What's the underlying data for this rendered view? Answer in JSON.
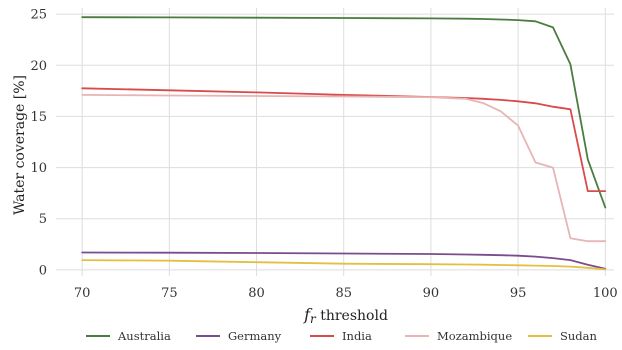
{
  "chart_data": {
    "type": "line",
    "title": "",
    "xlabel_symbol": "f",
    "xlabel_subscript": "r",
    "xlabel_text": " threshold",
    "ylabel": "Water coverage [%]",
    "xlim": [
      68.5,
      100.5
    ],
    "ylim": [
      -0.6,
      25.6
    ],
    "xticks": [
      70,
      75,
      80,
      85,
      90,
      95,
      100
    ],
    "yticks": [
      0,
      5,
      10,
      15,
      20,
      25
    ],
    "grid": true,
    "legend_position": "bottom",
    "series": [
      {
        "name": "Australia",
        "color": "#4a7c3f",
        "x": [
          70,
          75,
          80,
          85,
          90,
          92,
          93,
          94,
          95,
          96,
          97,
          98,
          99,
          100
        ],
        "y": [
          24.7,
          24.68,
          24.65,
          24.62,
          24.58,
          24.55,
          24.52,
          24.48,
          24.42,
          24.3,
          23.7,
          20.1,
          10.8,
          6.1
        ]
      },
      {
        "name": "Germany",
        "color": "#7b4b8e",
        "x": [
          70,
          75,
          80,
          85,
          90,
          92,
          93,
          94,
          95,
          96,
          97,
          98,
          99,
          100
        ],
        "y": [
          1.7,
          1.68,
          1.65,
          1.6,
          1.55,
          1.5,
          1.47,
          1.43,
          1.38,
          1.3,
          1.15,
          0.95,
          0.5,
          0.1
        ]
      },
      {
        "name": "India",
        "color": "#d94a4a",
        "x": [
          70,
          75,
          80,
          85,
          90,
          92,
          93,
          94,
          95,
          96,
          97,
          98,
          99,
          100
        ],
        "y": [
          17.75,
          17.55,
          17.35,
          17.1,
          16.9,
          16.8,
          16.72,
          16.62,
          16.48,
          16.28,
          15.95,
          15.7,
          7.7,
          7.7
        ]
      },
      {
        "name": "Mozambique",
        "color": "#e8b4b4",
        "x": [
          70,
          75,
          80,
          85,
          90,
          92,
          93,
          94,
          95,
          96,
          97,
          98,
          99,
          100
        ],
        "y": [
          17.1,
          17.05,
          17.0,
          16.95,
          16.88,
          16.72,
          16.3,
          15.5,
          14.1,
          10.5,
          10.0,
          3.1,
          2.8,
          2.8
        ]
      },
      {
        "name": "Sudan",
        "color": "#e3c042",
        "x": [
          70,
          75,
          80,
          85,
          90,
          92,
          93,
          94,
          95,
          96,
          97,
          98,
          99,
          100
        ],
        "y": [
          0.95,
          0.9,
          0.75,
          0.6,
          0.55,
          0.52,
          0.5,
          0.48,
          0.45,
          0.42,
          0.38,
          0.32,
          0.2,
          0.05
        ]
      }
    ]
  }
}
